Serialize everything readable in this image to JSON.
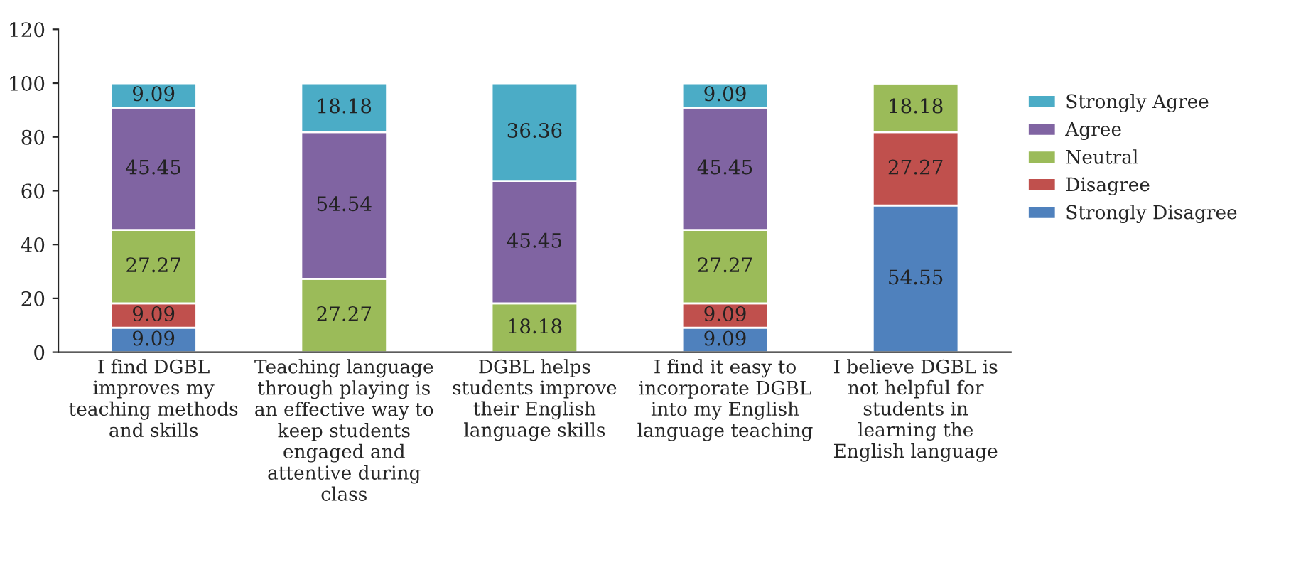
{
  "chart_data": {
    "type": "bar",
    "stacked": true,
    "categories": [
      "I find DGBL\nimproves my\nteaching methods\nand skills",
      "Teaching language\nthrough playing is\nan effective way to\nkeep students\nengaged and\nattentive during\nclass",
      "DGBL helps\nstudents improve\ntheir English\nlanguage skills",
      "I find it easy to\nincorporate DGBL\ninto my English\nlanguage teaching",
      "I believe DGBL is\nnot helpful for\nstudents in\nlearning the\nEnglish language"
    ],
    "series": [
      {
        "name": "Strongly Disagree",
        "color": "#4f81bd",
        "values": [
          9.09,
          null,
          null,
          9.09,
          54.55
        ]
      },
      {
        "name": "Disagree",
        "color": "#c0504d",
        "values": [
          9.09,
          null,
          null,
          9.09,
          27.27
        ]
      },
      {
        "name": "Neutral",
        "color": "#9bbb59",
        "values": [
          27.27,
          27.27,
          18.18,
          27.27,
          18.18
        ]
      },
      {
        "name": "Agree",
        "color": "#8064a2",
        "values": [
          45.45,
          54.54,
          45.45,
          45.45,
          null
        ]
      },
      {
        "name": "Strongly Agree",
        "color": "#4bacc6",
        "values": [
          9.09,
          18.18,
          36.36,
          9.09,
          null
        ]
      }
    ],
    "ylim": [
      0,
      120
    ],
    "yticks": [
      0,
      20,
      40,
      60,
      80,
      100,
      120
    ],
    "data_labels": true,
    "legend": "right",
    "grid": false
  }
}
